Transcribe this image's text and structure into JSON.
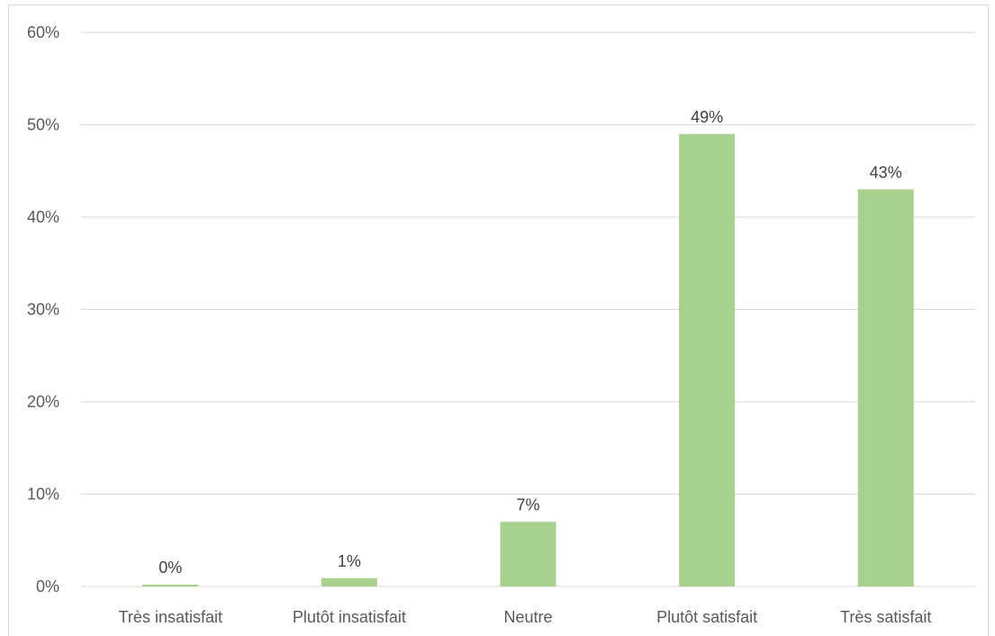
{
  "chart_data": {
    "type": "bar",
    "categories": [
      "Très insatisfait",
      "Plutôt insatisfait",
      "Neutre",
      "Plutôt satisfait",
      "Très satisfait"
    ],
    "values": [
      0.2,
      0.9,
      7,
      49,
      43
    ],
    "data_labels": [
      "0%",
      "1%",
      "7%",
      "49%",
      "43%"
    ],
    "ylim": [
      0,
      60
    ],
    "yticks": [
      0,
      10,
      20,
      30,
      40,
      50,
      60
    ],
    "ytick_labels": [
      "0%",
      "10%",
      "20%",
      "30%",
      "40%",
      "50%",
      "60%"
    ],
    "bar_color": "#a9d18e",
    "grid": true,
    "legend": "none"
  }
}
